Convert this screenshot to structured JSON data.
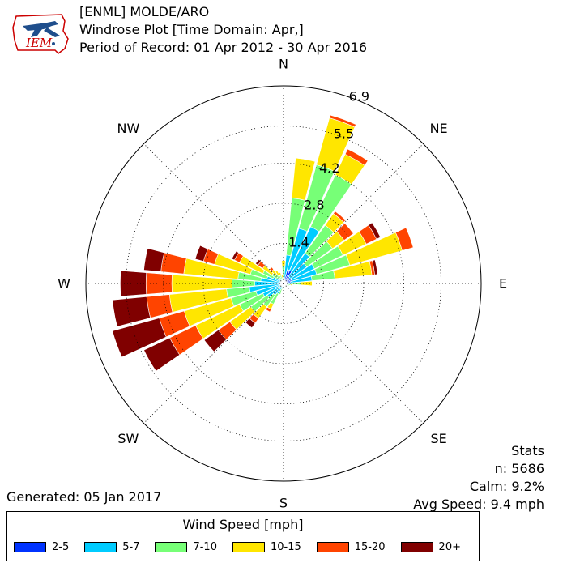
{
  "header": {
    "line1": "[ENML] MOLDE/ARO",
    "line2": "Windrose Plot [Time Domain: Apr,]",
    "line3": "Period of Record: 01 Apr 2012 - 30 Apr 2016"
  },
  "logo": {
    "text": "IEM"
  },
  "generated": "Generated: 05 Jan 2017",
  "stats": {
    "title": "Stats",
    "n": "n: 5686",
    "calm": "Calm: 9.2%",
    "avg_speed": "Avg Speed: 9.4 mph"
  },
  "legend": {
    "title": "Wind Speed [mph]",
    "items": [
      {
        "label": "2-5",
        "color": "#0033ff"
      },
      {
        "label": "5-7",
        "color": "#00ccff"
      },
      {
        "label": "7-10",
        "color": "#77ff77"
      },
      {
        "label": "10-15",
        "color": "#ffe600"
      },
      {
        "label": "15-20",
        "color": "#ff4400"
      },
      {
        "label": "20+",
        "color": "#800000"
      }
    ]
  },
  "chart_data": {
    "type": "windrose",
    "directions": [
      "N",
      "NE",
      "E",
      "SE",
      "S",
      "SW",
      "W",
      "NW"
    ],
    "radial_ticks": [
      1.4,
      2.8,
      4.2,
      5.5,
      6.9
    ],
    "rmax": 6.9,
    "speed_bins": [
      "2-5",
      "5-7",
      "7-10",
      "10-15",
      "15-20",
      "20+"
    ],
    "colors": [
      "#0033ff",
      "#00ccff",
      "#77ff77",
      "#ffe600",
      "#ff4400",
      "#800000"
    ],
    "sectors": [
      {
        "dir": 0,
        "cum": [
          0.04,
          0.1,
          0.6,
          0.8,
          0.8,
          0.8
        ]
      },
      {
        "dir": 10,
        "cum": [
          0.2,
          1.0,
          3.0,
          4.4,
          4.4,
          4.4
        ]
      },
      {
        "dir": 20,
        "cum": [
          0.5,
          2.0,
          4.3,
          6.0,
          6.1,
          6.1
        ]
      },
      {
        "dir": 30,
        "cum": [
          0.5,
          2.2,
          4.2,
          5.0,
          5.2,
          5.2
        ]
      },
      {
        "dir": 40,
        "cum": [
          0.3,
          1.3,
          2.5,
          3.0,
          3.1,
          3.1
        ]
      },
      {
        "dir": 50,
        "cum": [
          0.25,
          1.0,
          2.1,
          2.6,
          3.0,
          3.0
        ]
      },
      {
        "dir": 60,
        "cum": [
          0.3,
          1.2,
          2.3,
          3.2,
          3.6,
          3.75
        ]
      },
      {
        "dir": 70,
        "cum": [
          0.3,
          1.2,
          2.4,
          4.3,
          4.7,
          4.7
        ]
      },
      {
        "dir": 80,
        "cum": [
          0.25,
          1.0,
          1.8,
          3.1,
          3.2,
          3.3
        ]
      },
      {
        "dir": 90,
        "cum": [
          0.1,
          0.3,
          0.6,
          1.0,
          1.0,
          1.0
        ]
      },
      {
        "dir": 100,
        "cum": [
          0.05,
          0.15,
          0.25,
          0.3,
          0.3,
          0.3
        ]
      },
      {
        "dir": 110,
        "cum": [
          0.05,
          0.1,
          0.2,
          0.2,
          0.2,
          0.2
        ]
      },
      {
        "dir": 120,
        "cum": [
          0.05,
          0.1,
          0.15,
          0.15,
          0.15,
          0.15
        ]
      },
      {
        "dir": 130,
        "cum": [
          0.05,
          0.08,
          0.12,
          0.12,
          0.12,
          0.12
        ]
      },
      {
        "dir": 140,
        "cum": [
          0.05,
          0.08,
          0.1,
          0.1,
          0.1,
          0.1
        ]
      },
      {
        "dir": 150,
        "cum": [
          0.05,
          0.08,
          0.1,
          0.1,
          0.1,
          0.1
        ]
      },
      {
        "dir": 160,
        "cum": [
          0.05,
          0.08,
          0.1,
          0.1,
          0.1,
          0.1
        ]
      },
      {
        "dir": 170,
        "cum": [
          0.05,
          0.08,
          0.1,
          0.1,
          0.1,
          0.1
        ]
      },
      {
        "dir": 180,
        "cum": [
          0.05,
          0.08,
          0.1,
          0.1,
          0.1,
          0.1
        ]
      },
      {
        "dir": 190,
        "cum": [
          0.05,
          0.1,
          0.2,
          0.2,
          0.2,
          0.2
        ]
      },
      {
        "dir": 200,
        "cum": [
          0.05,
          0.2,
          0.4,
          0.4,
          0.4,
          0.4
        ]
      },
      {
        "dir": 210,
        "cum": [
          0.1,
          0.4,
          0.8,
          1.0,
          1.1,
          1.1
        ]
      },
      {
        "dir": 220,
        "cum": [
          0.1,
          0.5,
          1.0,
          1.5,
          1.7,
          1.9
        ]
      },
      {
        "dir": 230,
        "cum": [
          0.1,
          0.7,
          1.4,
          2.3,
          2.8,
          3.4
        ]
      },
      {
        "dir": 240,
        "cum": [
          0.1,
          0.8,
          1.7,
          3.4,
          4.4,
          5.4
        ]
      },
      {
        "dir": 250,
        "cum": [
          0.15,
          1.0,
          1.9,
          3.6,
          4.5,
          6.2
        ]
      },
      {
        "dir": 260,
        "cum": [
          0.15,
          1.2,
          2.0,
          4.0,
          4.8,
          6.0
        ]
      },
      {
        "dir": 270,
        "cum": [
          0.15,
          1.0,
          1.8,
          3.9,
          4.8,
          5.7
        ]
      },
      {
        "dir": 280,
        "cum": [
          0.1,
          0.8,
          1.6,
          3.5,
          4.3,
          4.9
        ]
      },
      {
        "dir": 290,
        "cum": [
          0.1,
          0.6,
          1.2,
          2.5,
          2.9,
          3.2
        ]
      },
      {
        "dir": 300,
        "cum": [
          0.1,
          0.4,
          0.8,
          1.7,
          1.9,
          2.0
        ]
      },
      {
        "dir": 310,
        "cum": [
          0.05,
          0.25,
          0.5,
          0.9,
          1.1,
          1.2
        ]
      },
      {
        "dir": 320,
        "cum": [
          0.05,
          0.2,
          0.4,
          0.6,
          0.7,
          0.7
        ]
      },
      {
        "dir": 330,
        "cum": [
          0.05,
          0.15,
          0.3,
          0.5,
          0.5,
          0.5
        ]
      },
      {
        "dir": 340,
        "cum": [
          0.05,
          0.1,
          0.3,
          0.4,
          0.4,
          0.4
        ]
      },
      {
        "dir": 350,
        "cum": [
          0.05,
          0.1,
          0.2,
          0.3,
          0.3,
          0.3
        ]
      }
    ]
  }
}
